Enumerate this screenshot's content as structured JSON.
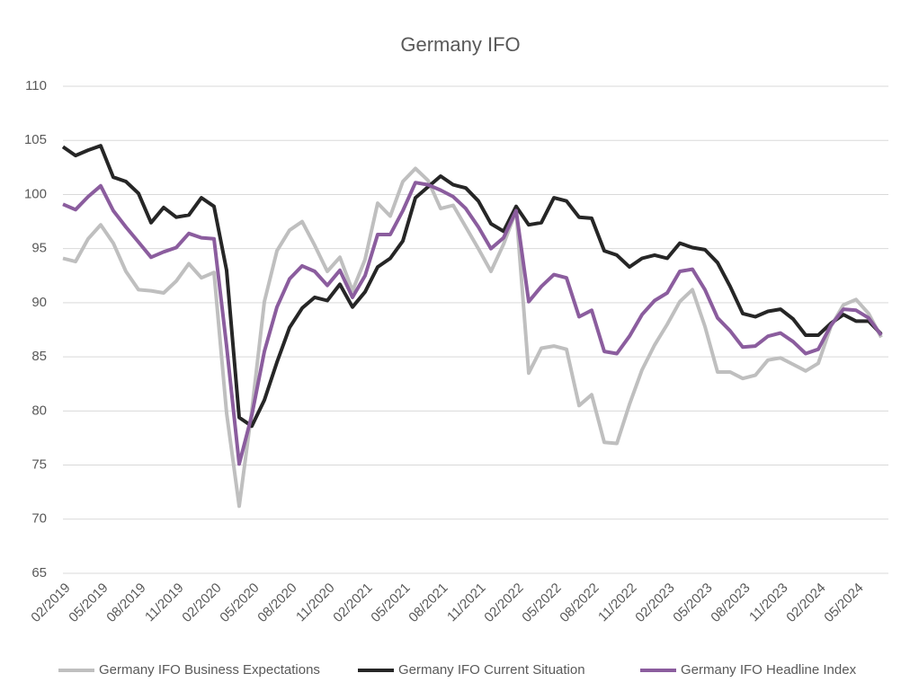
{
  "chart_data": {
    "type": "line",
    "title": "Germany IFO",
    "categories": [
      "02/2019",
      null,
      null,
      "05/2019",
      null,
      null,
      "08/2019",
      null,
      null,
      "11/2019",
      null,
      null,
      "02/2020",
      null,
      null,
      "05/2020",
      null,
      null,
      "08/2020",
      null,
      null,
      "11/2020",
      null,
      null,
      "02/2021",
      null,
      null,
      "05/2021",
      null,
      null,
      "08/2021",
      null,
      null,
      "11/2021",
      null,
      null,
      "02/2022",
      null,
      null,
      "05/2022",
      null,
      null,
      "08/2022",
      null,
      null,
      "11/2022",
      null,
      null,
      "02/2023",
      null,
      null,
      "05/2023",
      null,
      null,
      "08/2023",
      null,
      null,
      "11/2023",
      null,
      null,
      "02/2024",
      null,
      null,
      "05/2024",
      null,
      null
    ],
    "series": [
      {
        "name": "Germany IFO Business Expectations",
        "color": "#bfbfbf",
        "values": [
          94.1,
          93.8,
          95.9,
          97.2,
          95.5,
          92.9,
          91.2,
          91.1,
          90.9,
          92.0,
          93.6,
          92.3,
          92.8,
          79.8,
          71.2,
          80.0,
          90.1,
          94.8,
          96.7,
          97.5,
          95.3,
          92.9,
          94.2,
          91.1,
          94.0,
          99.2,
          98.0,
          101.2,
          102.4,
          101.3,
          98.7,
          99.0,
          97.0,
          95.0,
          92.9,
          95.4,
          98.5,
          83.5,
          85.8,
          86.0,
          85.7,
          80.5,
          81.5,
          77.1,
          77.0,
          80.6,
          83.8,
          86.1,
          88.0,
          90.1,
          91.2,
          87.8,
          83.6,
          83.6,
          83.0,
          83.3,
          84.7,
          84.9,
          84.3,
          83.7,
          84.4,
          87.8,
          89.8,
          90.3,
          89.0,
          86.8
        ]
      },
      {
        "name": "Germany IFO Current Situation",
        "color": "#262626",
        "values": [
          104.4,
          103.6,
          104.1,
          104.5,
          101.6,
          101.2,
          100.1,
          97.4,
          98.8,
          97.9,
          98.1,
          99.7,
          98.9,
          93.0,
          79.4,
          78.6,
          81.0,
          84.5,
          87.7,
          89.5,
          90.5,
          90.2,
          91.7,
          89.6,
          91.0,
          93.3,
          94.1,
          95.7,
          99.7,
          100.7,
          101.7,
          100.9,
          100.6,
          99.4,
          97.3,
          96.6,
          98.9,
          97.2,
          97.4,
          99.7,
          99.4,
          97.9,
          97.8,
          94.8,
          94.4,
          93.3,
          94.1,
          94.4,
          94.1,
          95.5,
          95.1,
          94.9,
          93.7,
          91.5,
          89.0,
          88.7,
          89.2,
          89.4,
          88.5,
          87.0,
          87.0,
          88.1,
          88.9,
          88.3,
          88.3,
          87.1
        ]
      },
      {
        "name": "Germany IFO Headline Index",
        "color": "#8b5d9e",
        "values": [
          99.1,
          98.6,
          99.8,
          100.8,
          98.5,
          97.0,
          95.6,
          94.2,
          94.7,
          95.1,
          96.4,
          96.0,
          95.9,
          86.0,
          75.1,
          79.6,
          85.5,
          89.6,
          92.2,
          93.4,
          92.9,
          91.6,
          93.0,
          90.5,
          92.5,
          96.3,
          96.3,
          98.5,
          101.1,
          100.9,
          100.4,
          99.8,
          98.7,
          97.0,
          95.0,
          96.0,
          98.5,
          90.1,
          91.5,
          92.6,
          92.3,
          88.7,
          89.3,
          85.5,
          85.3,
          86.9,
          88.9,
          90.2,
          90.9,
          92.9,
          93.1,
          91.2,
          88.6,
          87.4,
          85.9,
          86.0,
          86.9,
          87.2,
          86.4,
          85.3,
          85.7,
          87.9,
          89.4,
          89.3,
          88.6,
          87.0
        ]
      }
    ],
    "ylim": [
      65,
      110
    ],
    "yticks": [
      65,
      70,
      75,
      80,
      85,
      90,
      95,
      100,
      105,
      110
    ],
    "grid": true,
    "legend": "bottom"
  }
}
